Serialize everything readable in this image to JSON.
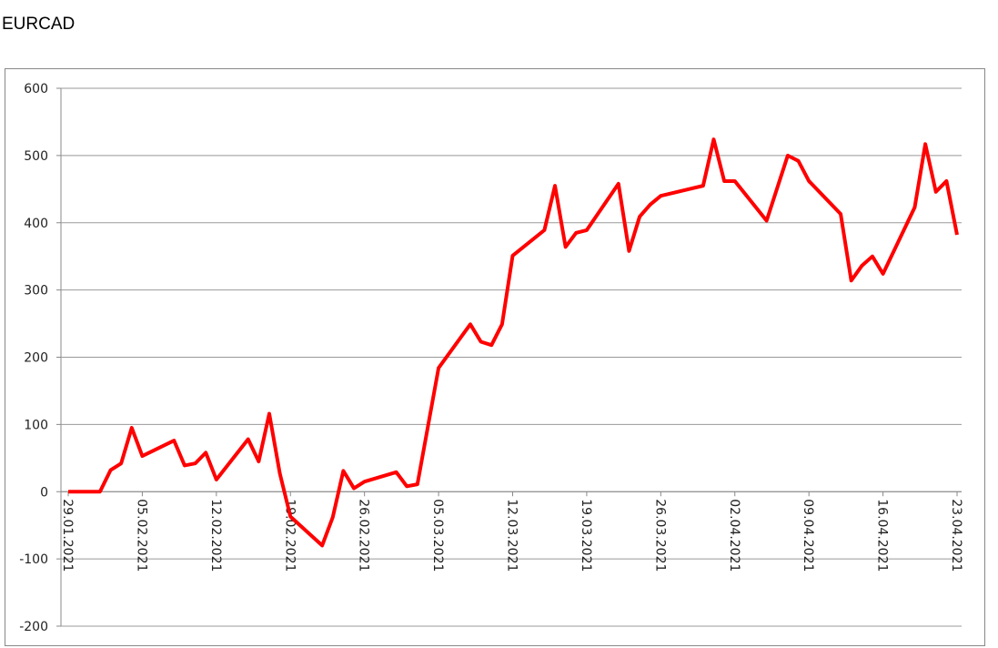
{
  "chart_data": {
    "type": "line",
    "title": "EURCAD",
    "x": [
      "29.01.2021",
      "01.02.2021",
      "02.02.2021",
      "03.02.2021",
      "04.02.2021",
      "05.02.2021",
      "08.02.2021",
      "09.02.2021",
      "10.02.2021",
      "11.02.2021",
      "12.02.2021",
      "15.02.2021",
      "16.02.2021",
      "17.02.2021",
      "18.02.2021",
      "19.02.2021",
      "22.02.2021",
      "23.02.2021",
      "24.02.2021",
      "25.02.2021",
      "26.02.2021",
      "01.03.2021",
      "02.03.2021",
      "03.03.2021",
      "05.03.2021",
      "08.03.2021",
      "09.03.2021",
      "10.03.2021",
      "11.03.2021",
      "12.03.2021",
      "15.03.2021",
      "16.03.2021",
      "17.03.2021",
      "18.03.2021",
      "19.03.2021",
      "22.03.2021",
      "23.03.2021",
      "24.03.2021",
      "25.03.2021",
      "26.03.2021",
      "30.03.2021",
      "31.03.2021",
      "01.04.2021",
      "02.04.2021",
      "05.04.2021",
      "07.04.2021",
      "08.04.2021",
      "09.04.2021",
      "12.04.2021",
      "13.04.2021",
      "14.04.2021",
      "15.04.2021",
      "16.04.2021",
      "19.04.2021",
      "20.04.2021",
      "21.04.2021",
      "22.04.2021",
      "23.04.2021"
    ],
    "series": [
      {
        "name": "EURCAD",
        "color": "#ff0000",
        "values": [
          0,
          0,
          32,
          42,
          95,
          53,
          76,
          39,
          42,
          58,
          18,
          78,
          45,
          116,
          27,
          -37,
          -80,
          -38,
          31,
          5,
          15,
          29,
          8,
          11,
          184,
          249,
          223,
          218,
          249,
          351,
          389,
          455,
          364,
          385,
          389,
          458,
          358,
          409,
          427,
          440,
          455,
          524,
          462,
          462,
          403,
          500,
          492,
          462,
          413,
          314,
          336,
          350,
          324,
          423,
          517,
          446,
          462,
          382
        ]
      }
    ],
    "xlim": [
      "29.01.2021",
      "23.04.2021"
    ],
    "xticks": [
      "29.01.2021",
      "05.02.2021",
      "12.02.2021",
      "19.02.2021",
      "26.02.2021",
      "05.03.2021",
      "12.03.2021",
      "19.03.2021",
      "26.03.2021",
      "02.04.2021",
      "09.04.2021",
      "16.04.2021",
      "23.04.2021"
    ],
    "ylim": [
      -200,
      600
    ],
    "yticks": [
      -200,
      -100,
      0,
      100,
      200,
      300,
      400,
      500,
      600
    ],
    "grid": true
  }
}
